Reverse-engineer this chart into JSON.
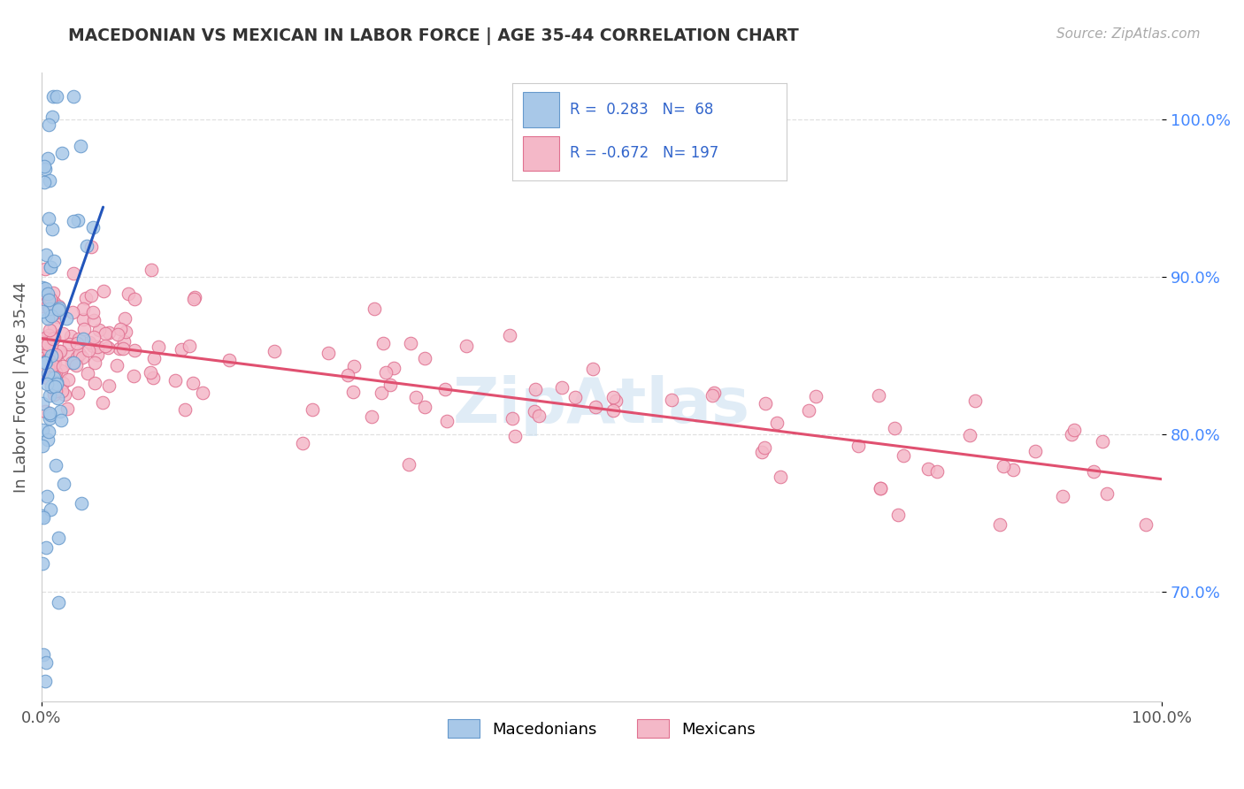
{
  "title": "MACEDONIAN VS MEXICAN IN LABOR FORCE | AGE 35-44 CORRELATION CHART",
  "source_text": "Source: ZipAtlas.com",
  "ylabel": "In Labor Force | Age 35-44",
  "x_min": 0.0,
  "x_max": 1.0,
  "y_min": 0.63,
  "y_max": 1.03,
  "y_ticks": [
    0.7,
    0.8,
    0.9,
    1.0
  ],
  "y_tick_labels": [
    "70.0%",
    "80.0%",
    "90.0%",
    "100.0%"
  ],
  "macedonian_R": 0.283,
  "macedonian_N": 68,
  "mexican_R": -0.672,
  "mexican_N": 197,
  "macedonian_color": "#a8c8e8",
  "macedonian_edge": "#6699cc",
  "mexican_color": "#f4b8c8",
  "mexican_edge": "#e07090",
  "trend_macedonian_color": "#2255bb",
  "trend_mexican_color": "#e05070",
  "watermark": "ZipAtlas",
  "watermark_color": "#cce0f0",
  "grid_color": "#dddddd",
  "title_color": "#333333",
  "source_color": "#aaaaaa",
  "ytick_color": "#4488ff",
  "ylabel_color": "#555555"
}
